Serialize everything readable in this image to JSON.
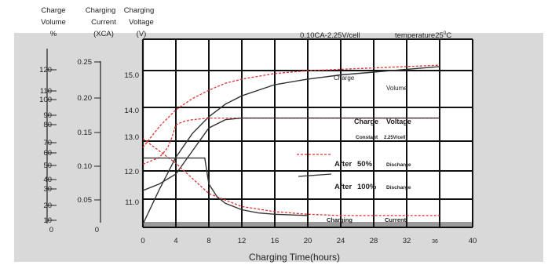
{
  "chart_data": {
    "type": "line",
    "header": {
      "col1": [
        "Charge",
        "Volume",
        "%"
      ],
      "col2": [
        "Charging",
        "Current",
        "(XCA)"
      ],
      "col3": [
        "Charging",
        "Voltage",
        "(V)"
      ],
      "condition": "0.10CA-2.25V/cell",
      "temperature_prefix": "temperature25",
      "temperature_sup": "0",
      "temperature_suffix": "C"
    },
    "xlabel": "Charging Time(hours)",
    "x_ticks": [
      "0",
      "4",
      "8",
      "12",
      "16",
      "20",
      "24",
      "28",
      "32",
      "36",
      "40"
    ],
    "xlim": [
      0,
      40
    ],
    "volume_ticks": [
      "120",
      "110",
      "100",
      "90",
      "80",
      "70",
      "60",
      "50",
      "40",
      "30",
      "20",
      "10",
      "0"
    ],
    "current_ticks": [
      "0.25",
      "0.20",
      "0.15",
      "0.10",
      "0.05",
      "0"
    ],
    "voltage_ticks": [
      "15.0",
      "14.0",
      "13.0",
      "12.0",
      "11.0"
    ],
    "annotations": {
      "charge_volume_1": "Charge",
      "charge_volume_2": "Volume",
      "charge_voltage_1": "Charge",
      "charge_voltage_2": "Voltage",
      "constant": "Constant",
      "constant_detail": "2.25V/cell)",
      "after50_1": "After",
      "after50_2": "50%",
      "after50_3": "Discharge",
      "after100_1": "After",
      "after100_2": "100%",
      "after100_3": "Discharge",
      "current_1": "Charging",
      "current_2": "Current"
    },
    "colors": {
      "after_50": "#e03030",
      "after_100": "#333333"
    },
    "series": [
      {
        "name": "Charge Volume",
        "group": "after_50",
        "axis": "volume",
        "x": [
          0,
          2,
          4,
          6,
          8,
          10,
          12,
          16,
          20,
          24,
          28,
          32,
          36
        ],
        "y": [
          55,
          70,
          82,
          90,
          96,
          101,
          104,
          108,
          110,
          111,
          112,
          113,
          114
        ]
      },
      {
        "name": "Charge Volume",
        "group": "after_100",
        "axis": "volume",
        "x": [
          0,
          2,
          4,
          6,
          8,
          10,
          12,
          16,
          20,
          24,
          28,
          32,
          36
        ],
        "y": [
          0,
          25,
          48,
          65,
          77,
          86,
          92,
          100,
          104,
          107,
          109,
          111,
          113
        ]
      },
      {
        "name": "Charge Voltage",
        "group": "after_50",
        "axis": "voltage",
        "x": [
          0,
          1,
          2,
          3,
          3.5,
          4,
          5,
          6,
          8,
          12,
          16,
          20,
          24,
          30,
          36
        ],
        "y": [
          12.3,
          12.4,
          12.5,
          12.8,
          13.1,
          13.5,
          13.6,
          13.65,
          13.7,
          13.7,
          13.7,
          13.7,
          13.7,
          13.7,
          13.7
        ]
      },
      {
        "name": "Charge Voltage",
        "group": "after_100",
        "axis": "voltage",
        "x": [
          0,
          1,
          2,
          4,
          6,
          8,
          10,
          12,
          16,
          20,
          24,
          30,
          36
        ],
        "y": [
          11.5,
          11.6,
          11.7,
          12.0,
          12.7,
          13.4,
          13.65,
          13.7,
          13.7,
          13.7,
          13.7,
          13.7,
          13.7
        ]
      },
      {
        "name": "Charging Current",
        "group": "after_50",
        "axis": "current",
        "x": [
          0,
          4,
          8,
          12,
          16,
          20,
          24,
          28,
          32,
          36
        ],
        "y": [
          0.13,
          0.092,
          0.045,
          0.025,
          0.017,
          0.013,
          0.011,
          0.011,
          0.011,
          0.011
        ]
      },
      {
        "name": "Charging Current",
        "group": "after_100",
        "axis": "current",
        "x": [
          0,
          1.5,
          3,
          4.5,
          6,
          7,
          7.5,
          8,
          9,
          10,
          12,
          14,
          16,
          18,
          20
        ],
        "y": [
          0.1,
          0.1,
          0.1,
          0.1,
          0.1,
          0.1,
          0.1,
          0.06,
          0.04,
          0.03,
          0.02,
          0.015,
          0.013,
          0.012,
          0.011
        ]
      }
    ]
  }
}
